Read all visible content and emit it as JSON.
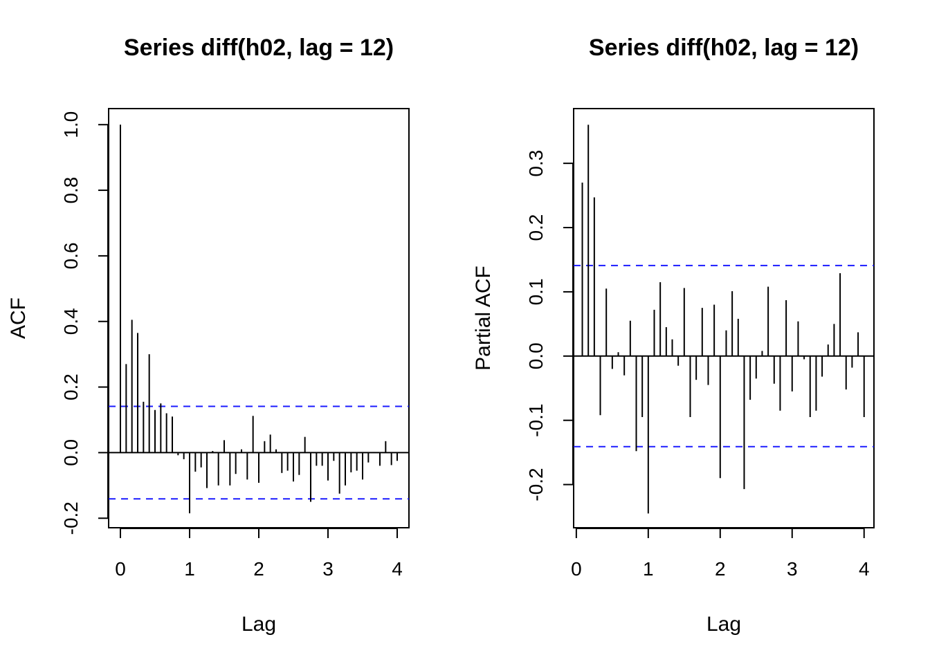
{
  "chart_data": [
    {
      "type": "bar",
      "title": "Series  diff(h02, lag = 12)",
      "xlabel": "Lag",
      "ylabel": "ACF",
      "xlim": [
        -0.17,
        4.17
      ],
      "ylim": [
        -0.229,
        1.049
      ],
      "xticks": [
        0,
        1,
        2,
        3,
        4
      ],
      "xtick_labels": [
        "0",
        "1",
        "2",
        "3",
        "4"
      ],
      "yticks": [
        -0.2,
        0.0,
        0.2,
        0.4,
        0.6,
        0.8,
        1.0
      ],
      "ytick_labels": [
        "-0.2",
        "0.0",
        "0.2",
        "0.4",
        "0.6",
        "0.8",
        "1.0"
      ],
      "confidence_bound": 0.141,
      "bound_color": "#1a1aff",
      "bar_color": "#000000",
      "lag_step": 0.0833333,
      "lag_start": 0,
      "values": [
        1.0,
        0.27,
        0.405,
        0.365,
        0.155,
        0.3,
        0.13,
        0.15,
        0.12,
        0.11,
        -0.008,
        -0.02,
        -0.185,
        -0.058,
        -0.045,
        -0.108,
        0.005,
        -0.1,
        0.038,
        -0.1,
        -0.065,
        0.01,
        -0.082,
        0.112,
        -0.092,
        0.035,
        0.055,
        0.01,
        -0.062,
        -0.055,
        -0.088,
        -0.068,
        0.048,
        -0.15,
        -0.04,
        -0.04,
        -0.085,
        -0.025,
        -0.125,
        -0.1,
        -0.06,
        -0.055,
        -0.082,
        -0.03,
        0.002,
        -0.04,
        0.035,
        -0.038,
        -0.025
      ]
    },
    {
      "type": "bar",
      "title": "Series  diff(h02, lag = 12)",
      "xlabel": "Lag",
      "ylabel": "Partial ACF",
      "xlim": [
        -0.0372,
        4.1372
      ],
      "ylim": [
        -0.2672,
        0.3852
      ],
      "xticks": [
        0,
        1,
        2,
        3,
        4
      ],
      "xtick_labels": [
        "0",
        "1",
        "2",
        "3",
        "4"
      ],
      "yticks": [
        -0.2,
        -0.1,
        0.0,
        0.1,
        0.2,
        0.3
      ],
      "ytick_labels": [
        "-0.2",
        "-0.1",
        "0.0",
        "0.1",
        "0.2",
        "0.3"
      ],
      "confidence_bound": 0.141,
      "bound_color": "#1a1aff",
      "bar_color": "#000000",
      "lag_step": 0.0833333,
      "lag_start": 0.0833333,
      "values": [
        0.27,
        0.36,
        0.247,
        -0.092,
        0.105,
        -0.02,
        0.006,
        -0.03,
        0.055,
        -0.148,
        -0.095,
        -0.245,
        0.072,
        0.115,
        0.045,
        0.026,
        -0.015,
        0.106,
        -0.095,
        -0.037,
        0.075,
        -0.045,
        0.08,
        -0.19,
        0.04,
        0.101,
        0.058,
        -0.207,
        -0.068,
        -0.035,
        0.008,
        0.108,
        -0.043,
        -0.085,
        0.087,
        -0.055,
        0.054,
        -0.005,
        -0.095,
        -0.085,
        -0.032,
        0.018,
        0.05,
        0.129,
        -0.052,
        -0.018,
        0.037,
        -0.095
      ]
    }
  ]
}
